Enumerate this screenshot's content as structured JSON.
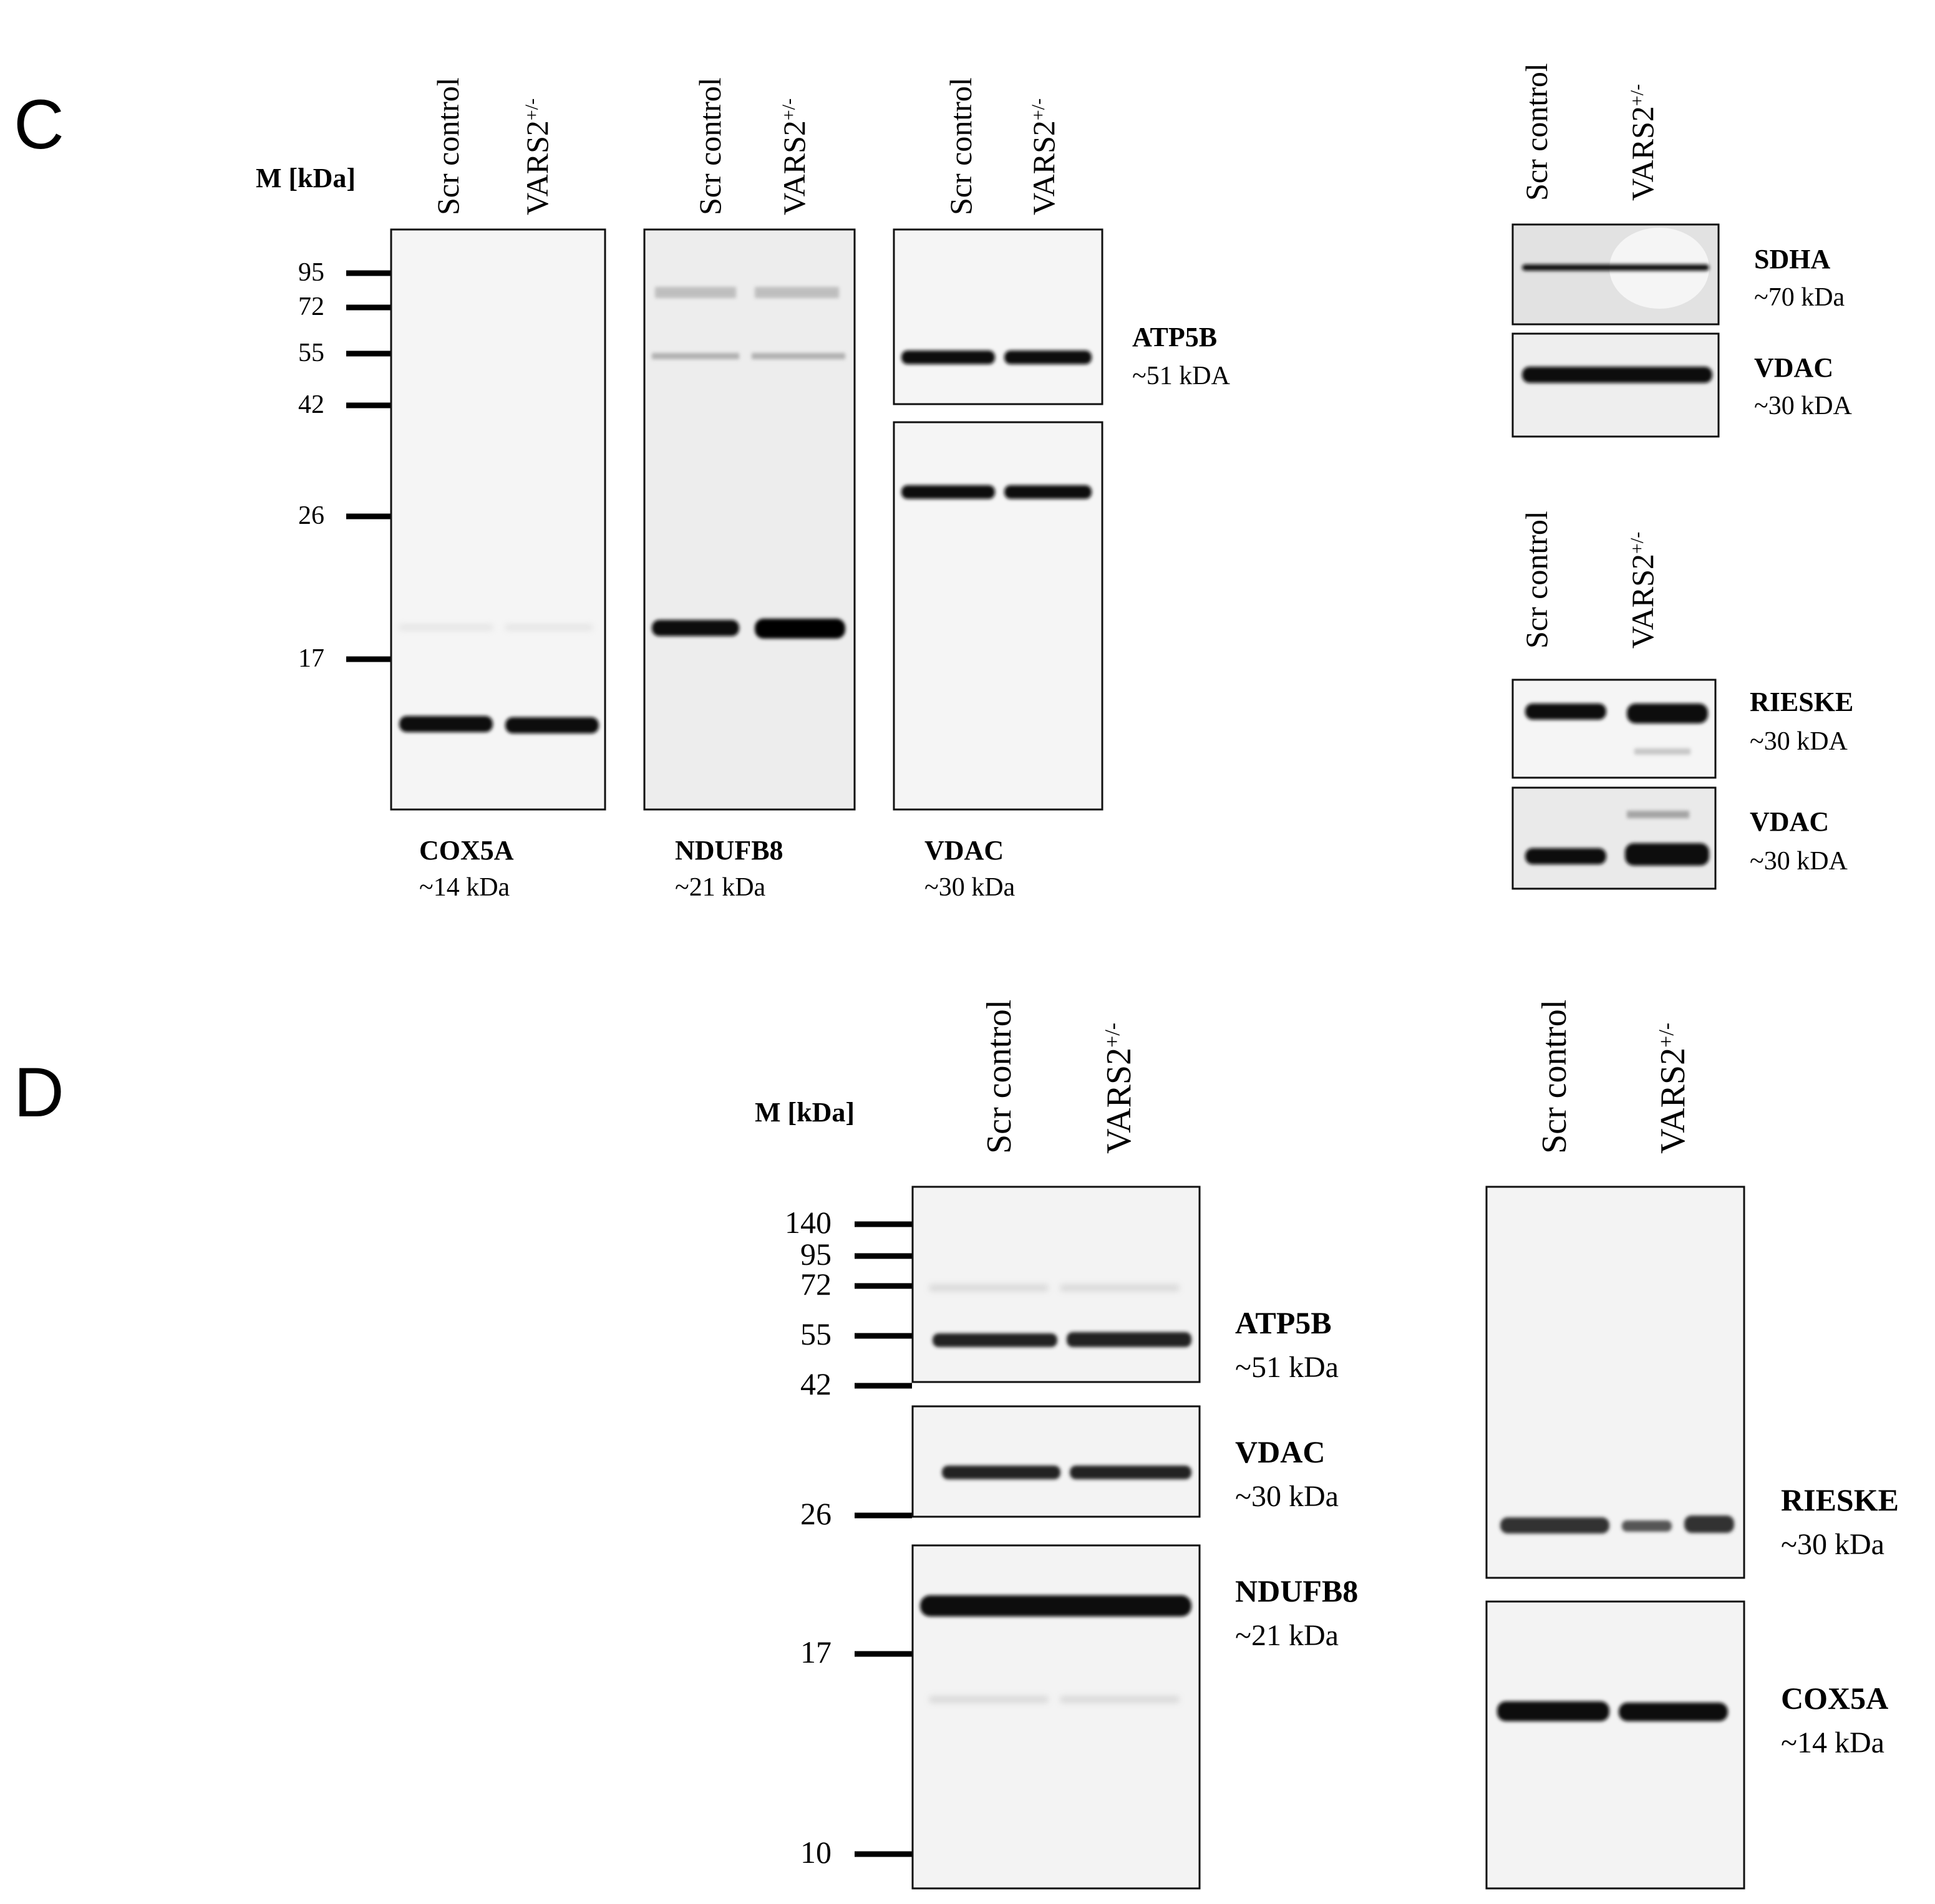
{
  "panel_c": {
    "letter": "C",
    "marker_header": "M [kDa]",
    "markers": [
      "95",
      "72",
      "55",
      "42",
      "26",
      "17"
    ],
    "lanes": {
      "control": "Scr control",
      "variant": "VARS2",
      "variant_sup": "+/-"
    },
    "blots": {
      "cox5a": {
        "name": "COX5A",
        "size": "~14 kDa"
      },
      "ndufb8": {
        "name": "NDUFB8",
        "size": "~21 kDa"
      },
      "vdac": {
        "name": "VDAC",
        "size": "~30 kDa"
      },
      "atp5b": {
        "name": "ATP5B",
        "size": "~51 kDA"
      },
      "sdha": {
        "name": "SDHA",
        "size": "~70 kDa"
      },
      "vdac_sdha": {
        "name": "VDAC",
        "size": "~30 kDA"
      },
      "rieske": {
        "name": "RIESKE",
        "size": "~30 kDA"
      },
      "vdac_rieske": {
        "name": "VDAC",
        "size": "~30 kDA"
      }
    }
  },
  "panel_d": {
    "letter": "D",
    "marker_header": "M [kDa]",
    "markers": [
      "140",
      "95",
      "72",
      "55",
      "42",
      "26",
      "17",
      "10"
    ],
    "lanes": {
      "control": "Scr control",
      "variant": "VARS2",
      "variant_sup": "+/-"
    },
    "blots": {
      "atp5b": {
        "name": "ATP5B",
        "size": "~51 kDa"
      },
      "vdac": {
        "name": "VDAC",
        "size": "~30 kDa"
      },
      "ndufb8": {
        "name": "NDUFB8",
        "size": "~21 kDa"
      },
      "rieske": {
        "name": "RIESKE",
        "size": "~30 kDa"
      },
      "cox5a": {
        "name": "COX5A",
        "size": "~14 kDa"
      }
    }
  }
}
